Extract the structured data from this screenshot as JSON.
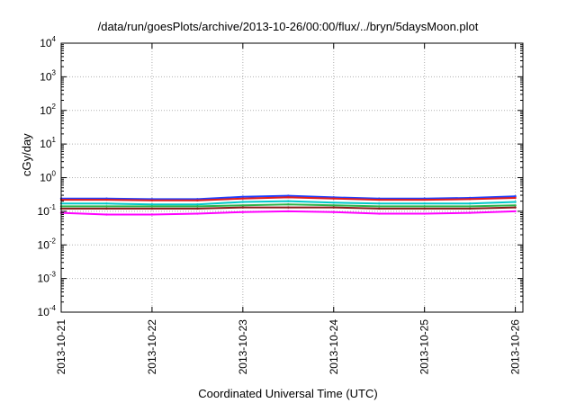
{
  "chart_data": {
    "type": "line",
    "title": "/data/run/goesPlots/archive/2013-10-26/00:00/flux/../bryn/5daysMoon.plot",
    "xlabel": "Coordinated Universal Time (UTC)",
    "ylabel": "cGy/day",
    "y_scale": "log",
    "ylim": [
      0.0001,
      10000
    ],
    "y_ticks": [
      {
        "base": "10",
        "exp": "-4"
      },
      {
        "base": "10",
        "exp": "-3"
      },
      {
        "base": "10",
        "exp": "-2"
      },
      {
        "base": "10",
        "exp": "-1"
      },
      {
        "base": "10",
        "exp": "0"
      },
      {
        "base": "10",
        "exp": "1"
      },
      {
        "base": "10",
        "exp": "2"
      },
      {
        "base": "10",
        "exp": "3"
      },
      {
        "base": "10",
        "exp": "4"
      }
    ],
    "xlim": [
      "2013-10-21",
      "2013-10-26 02:00"
    ],
    "x_tick_labels": [
      "2013-10-21",
      "2013-10-22",
      "2013-10-23",
      "2013-10-24",
      "2013-10-25",
      "2013-10-26"
    ],
    "grid": true,
    "x": [
      "2013-10-21",
      "2013-10-21 12:00",
      "2013-10-22",
      "2013-10-22 12:00",
      "2013-10-23",
      "2013-10-23 12:00",
      "2013-10-24",
      "2013-10-24 12:00",
      "2013-10-25",
      "2013-10-25 12:00",
      "2013-10-26"
    ],
    "series": [
      {
        "color": "#1f3fff",
        "values": [
          0.24,
          0.24,
          0.23,
          0.23,
          0.27,
          0.29,
          0.26,
          0.24,
          0.24,
          0.25,
          0.28
        ]
      },
      {
        "color": "#e01b1b",
        "values": [
          0.22,
          0.22,
          0.21,
          0.21,
          0.24,
          0.26,
          0.24,
          0.22,
          0.22,
          0.23,
          0.25
        ]
      },
      {
        "color": "#00c8c8",
        "values": [
          0.17,
          0.17,
          0.16,
          0.16,
          0.19,
          0.2,
          0.18,
          0.17,
          0.17,
          0.17,
          0.19
        ]
      },
      {
        "color": "#2bb34a",
        "values": [
          0.14,
          0.14,
          0.14,
          0.14,
          0.15,
          0.16,
          0.15,
          0.14,
          0.14,
          0.14,
          0.15
        ]
      },
      {
        "color": "#8b1a1a",
        "values": [
          0.12,
          0.12,
          0.12,
          0.12,
          0.13,
          0.13,
          0.13,
          0.12,
          0.12,
          0.12,
          0.13
        ]
      },
      {
        "color": "#ff00ff",
        "values": [
          0.09,
          0.08,
          0.08,
          0.085,
          0.095,
          0.1,
          0.095,
          0.085,
          0.085,
          0.09,
          0.1
        ]
      }
    ]
  }
}
